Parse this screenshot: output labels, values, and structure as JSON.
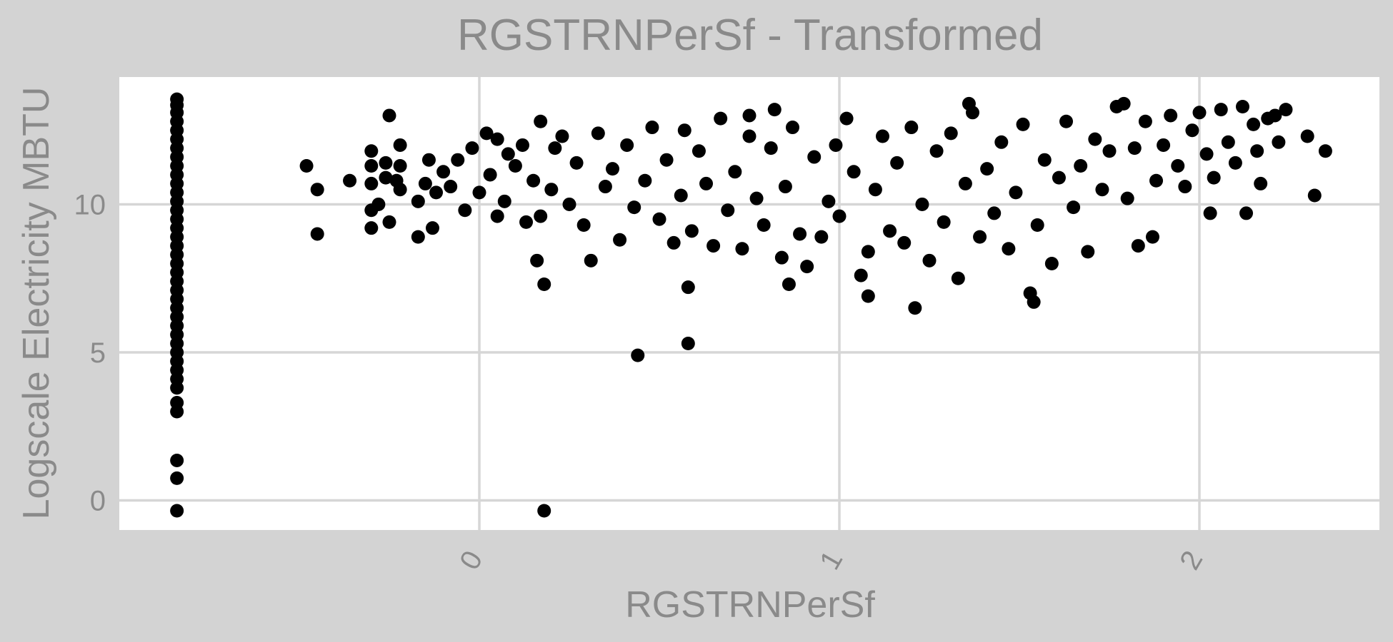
{
  "chart_data": {
    "type": "scatter",
    "title": "RGSTRNPerSf - Transformed",
    "xlabel": "RGSTRNPerSf",
    "ylabel": "Logscale Electricity MBTU",
    "xlim": [
      -1.0,
      2.5
    ],
    "ylim": [
      -1.0,
      14.3
    ],
    "x_ticks": [
      0,
      1,
      2
    ],
    "x_tick_labels": [
      "0",
      "1",
      "2"
    ],
    "y_ticks": [
      0,
      5,
      10
    ],
    "y_tick_labels": [
      "0",
      "5",
      "10"
    ],
    "grid": true,
    "legend": "none",
    "point_color": "#000000",
    "panel_background": "#ffffff",
    "plot_background": "#d3d3d3",
    "text_color": "#8a8a8a",
    "grid_color": "#d6d6d6",
    "points": [
      [
        -0.84,
        -0.35
      ],
      [
        -0.84,
        0.75
      ],
      [
        -0.84,
        1.35
      ],
      [
        -0.84,
        3.0
      ],
      [
        -0.84,
        3.3
      ],
      [
        -0.84,
        3.8
      ],
      [
        -0.84,
        4.1
      ],
      [
        -0.84,
        4.4
      ],
      [
        -0.84,
        4.7
      ],
      [
        -0.84,
        5.0
      ],
      [
        -0.84,
        5.3
      ],
      [
        -0.84,
        5.6
      ],
      [
        -0.84,
        5.9
      ],
      [
        -0.84,
        6.2
      ],
      [
        -0.84,
        6.5
      ],
      [
        -0.84,
        6.8
      ],
      [
        -0.84,
        7.1
      ],
      [
        -0.84,
        7.4
      ],
      [
        -0.84,
        7.7
      ],
      [
        -0.84,
        8.0
      ],
      [
        -0.84,
        8.3
      ],
      [
        -0.84,
        8.6
      ],
      [
        -0.84,
        8.9
      ],
      [
        -0.84,
        9.2
      ],
      [
        -0.84,
        9.5
      ],
      [
        -0.84,
        9.8
      ],
      [
        -0.84,
        10.1
      ],
      [
        -0.84,
        10.4
      ],
      [
        -0.84,
        10.7
      ],
      [
        -0.84,
        11.0
      ],
      [
        -0.84,
        11.3
      ],
      [
        -0.84,
        11.6
      ],
      [
        -0.84,
        11.9
      ],
      [
        -0.84,
        12.2
      ],
      [
        -0.84,
        12.5
      ],
      [
        -0.84,
        12.8
      ],
      [
        -0.84,
        13.1
      ],
      [
        -0.84,
        13.35
      ],
      [
        -0.84,
        13.55
      ],
      [
        -0.48,
        11.3
      ],
      [
        -0.45,
        10.5
      ],
      [
        -0.45,
        9.0
      ],
      [
        -0.36,
        10.8
      ],
      [
        -0.3,
        11.8
      ],
      [
        -0.3,
        11.3
      ],
      [
        -0.3,
        10.7
      ],
      [
        -0.3,
        9.8
      ],
      [
        -0.3,
        9.2
      ],
      [
        -0.28,
        10.0
      ],
      [
        -0.26,
        10.9
      ],
      [
        -0.26,
        11.4
      ],
      [
        -0.25,
        13.0
      ],
      [
        -0.25,
        9.4
      ],
      [
        -0.23,
        10.8
      ],
      [
        -0.22,
        11.3
      ],
      [
        -0.22,
        10.5
      ],
      [
        -0.22,
        12.0
      ],
      [
        -0.17,
        10.1
      ],
      [
        -0.17,
        8.9
      ],
      [
        -0.15,
        10.7
      ],
      [
        -0.14,
        11.5
      ],
      [
        -0.13,
        9.2
      ],
      [
        -0.12,
        10.4
      ],
      [
        -0.1,
        11.1
      ],
      [
        -0.08,
        10.6
      ],
      [
        -0.06,
        11.5
      ],
      [
        -0.04,
        9.8
      ],
      [
        -0.02,
        11.9
      ],
      [
        0.0,
        10.4
      ],
      [
        0.02,
        12.4
      ],
      [
        0.03,
        11.0
      ],
      [
        0.05,
        9.6
      ],
      [
        0.05,
        12.2
      ],
      [
        0.07,
        10.1
      ],
      [
        0.08,
        11.7
      ],
      [
        0.1,
        11.3
      ],
      [
        0.12,
        12.0
      ],
      [
        0.13,
        9.4
      ],
      [
        0.15,
        10.8
      ],
      [
        0.16,
        8.1
      ],
      [
        0.17,
        12.8
      ],
      [
        0.17,
        9.6
      ],
      [
        0.18,
        7.3
      ],
      [
        0.18,
        -0.35
      ],
      [
        0.2,
        10.5
      ],
      [
        0.21,
        11.9
      ],
      [
        0.23,
        12.3
      ],
      [
        0.25,
        10.0
      ],
      [
        0.27,
        11.4
      ],
      [
        0.29,
        9.3
      ],
      [
        0.31,
        8.1
      ],
      [
        0.33,
        12.4
      ],
      [
        0.35,
        10.6
      ],
      [
        0.37,
        11.2
      ],
      [
        0.39,
        8.8
      ],
      [
        0.41,
        12.0
      ],
      [
        0.43,
        9.9
      ],
      [
        0.44,
        4.9
      ],
      [
        0.46,
        10.8
      ],
      [
        0.48,
        12.6
      ],
      [
        0.5,
        9.5
      ],
      [
        0.52,
        11.5
      ],
      [
        0.54,
        8.7
      ],
      [
        0.56,
        10.3
      ],
      [
        0.57,
        12.5
      ],
      [
        0.58,
        7.2
      ],
      [
        0.58,
        5.3
      ],
      [
        0.59,
        9.1
      ],
      [
        0.61,
        11.8
      ],
      [
        0.63,
        10.7
      ],
      [
        0.65,
        8.6
      ],
      [
        0.67,
        12.9
      ],
      [
        0.69,
        9.8
      ],
      [
        0.71,
        11.1
      ],
      [
        0.73,
        8.5
      ],
      [
        0.75,
        13.0
      ],
      [
        0.75,
        12.3
      ],
      [
        0.77,
        10.2
      ],
      [
        0.79,
        9.3
      ],
      [
        0.81,
        11.9
      ],
      [
        0.82,
        13.2
      ],
      [
        0.84,
        8.2
      ],
      [
        0.85,
        10.6
      ],
      [
        0.86,
        7.3
      ],
      [
        0.87,
        12.6
      ],
      [
        0.89,
        9.0
      ],
      [
        0.91,
        7.9
      ],
      [
        0.93,
        11.6
      ],
      [
        0.95,
        8.9
      ],
      [
        0.97,
        10.1
      ],
      [
        0.99,
        12.0
      ],
      [
        1.0,
        9.6
      ],
      [
        1.02,
        12.9
      ],
      [
        1.04,
        11.1
      ],
      [
        1.06,
        7.6
      ],
      [
        1.08,
        6.9
      ],
      [
        1.08,
        8.4
      ],
      [
        1.1,
        10.5
      ],
      [
        1.12,
        12.3
      ],
      [
        1.14,
        9.1
      ],
      [
        1.16,
        11.4
      ],
      [
        1.18,
        8.7
      ],
      [
        1.2,
        12.6
      ],
      [
        1.21,
        6.5
      ],
      [
        1.23,
        10.0
      ],
      [
        1.25,
        8.1
      ],
      [
        1.27,
        11.8
      ],
      [
        1.29,
        9.4
      ],
      [
        1.31,
        12.4
      ],
      [
        1.33,
        7.5
      ],
      [
        1.35,
        10.7
      ],
      [
        1.36,
        13.4
      ],
      [
        1.37,
        13.1
      ],
      [
        1.39,
        8.9
      ],
      [
        1.41,
        11.2
      ],
      [
        1.43,
        9.7
      ],
      [
        1.45,
        12.1
      ],
      [
        1.47,
        8.5
      ],
      [
        1.49,
        10.4
      ],
      [
        1.51,
        12.7
      ],
      [
        1.53,
        7.0
      ],
      [
        1.54,
        6.7
      ],
      [
        1.55,
        9.3
      ],
      [
        1.57,
        11.5
      ],
      [
        1.59,
        8.0
      ],
      [
        1.61,
        10.9
      ],
      [
        1.63,
        12.8
      ],
      [
        1.65,
        9.9
      ],
      [
        1.67,
        11.3
      ],
      [
        1.69,
        8.4
      ],
      [
        1.71,
        12.2
      ],
      [
        1.73,
        10.5
      ],
      [
        1.75,
        11.8
      ],
      [
        1.77,
        13.3
      ],
      [
        1.79,
        13.4
      ],
      [
        1.8,
        10.2
      ],
      [
        1.82,
        11.9
      ],
      [
        1.83,
        8.6
      ],
      [
        1.85,
        12.8
      ],
      [
        1.87,
        8.9
      ],
      [
        1.88,
        10.8
      ],
      [
        1.9,
        12.0
      ],
      [
        1.92,
        13.0
      ],
      [
        1.94,
        11.3
      ],
      [
        1.96,
        10.6
      ],
      [
        1.98,
        12.5
      ],
      [
        2.0,
        13.1
      ],
      [
        2.02,
        11.7
      ],
      [
        2.03,
        9.7
      ],
      [
        2.04,
        10.9
      ],
      [
        2.06,
        13.2
      ],
      [
        2.08,
        12.1
      ],
      [
        2.1,
        11.4
      ],
      [
        2.12,
        13.3
      ],
      [
        2.13,
        9.7
      ],
      [
        2.15,
        12.7
      ],
      [
        2.16,
        11.8
      ],
      [
        2.17,
        10.7
      ],
      [
        2.19,
        12.9
      ],
      [
        2.21,
        13.0
      ],
      [
        2.22,
        12.1
      ],
      [
        2.24,
        13.2
      ],
      [
        2.3,
        12.3
      ],
      [
        2.32,
        10.3
      ],
      [
        2.35,
        11.8
      ]
    ]
  }
}
